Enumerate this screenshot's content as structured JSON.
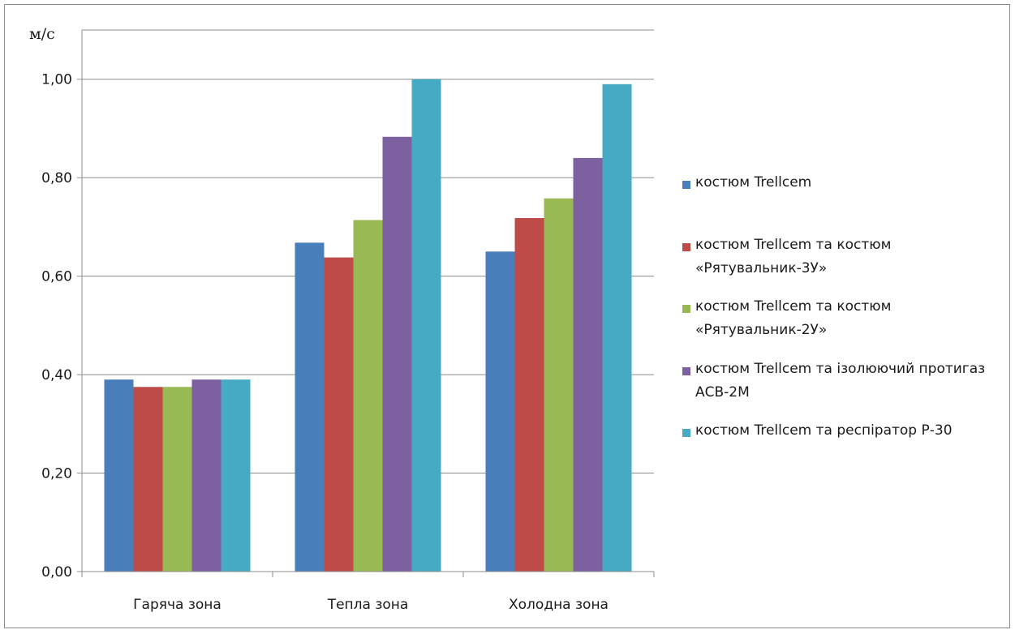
{
  "chart_data": {
    "type": "bar",
    "title": "",
    "xlabel": "",
    "ylabel": "м/с",
    "ylim": [
      0,
      1.1
    ],
    "yticks": [
      "0,00",
      "0,20",
      "0,40",
      "0,60",
      "0,80",
      "1,00"
    ],
    "grid": true,
    "legend_position": "right",
    "categories": [
      "Гаряча зона",
      "Тепла зона",
      "Холодна зона"
    ],
    "series": [
      {
        "name": "костюм Trellcem",
        "color": "#4a7ebb",
        "values": [
          0.39,
          0.668,
          0.65
        ]
      },
      {
        "name": "костюм Trellcem та костюм «Рятувальник-3У»",
        "color": "#be4b48",
        "values": [
          0.375,
          0.638,
          0.718
        ]
      },
      {
        "name": "костюм Trellcem та костюм «Рятувальник-2У»",
        "color": "#98b954",
        "values": [
          0.375,
          0.714,
          0.758
        ]
      },
      {
        "name": "костюм Trellcem та ізолюючий протигаз АСВ-2М",
        "color": "#7d60a0",
        "values": [
          0.39,
          0.883,
          0.84
        ]
      },
      {
        "name": "костюм Trellcem та респіратор Р-30",
        "color": "#46aac5",
        "values": [
          0.39,
          1.0,
          0.99
        ]
      }
    ]
  }
}
